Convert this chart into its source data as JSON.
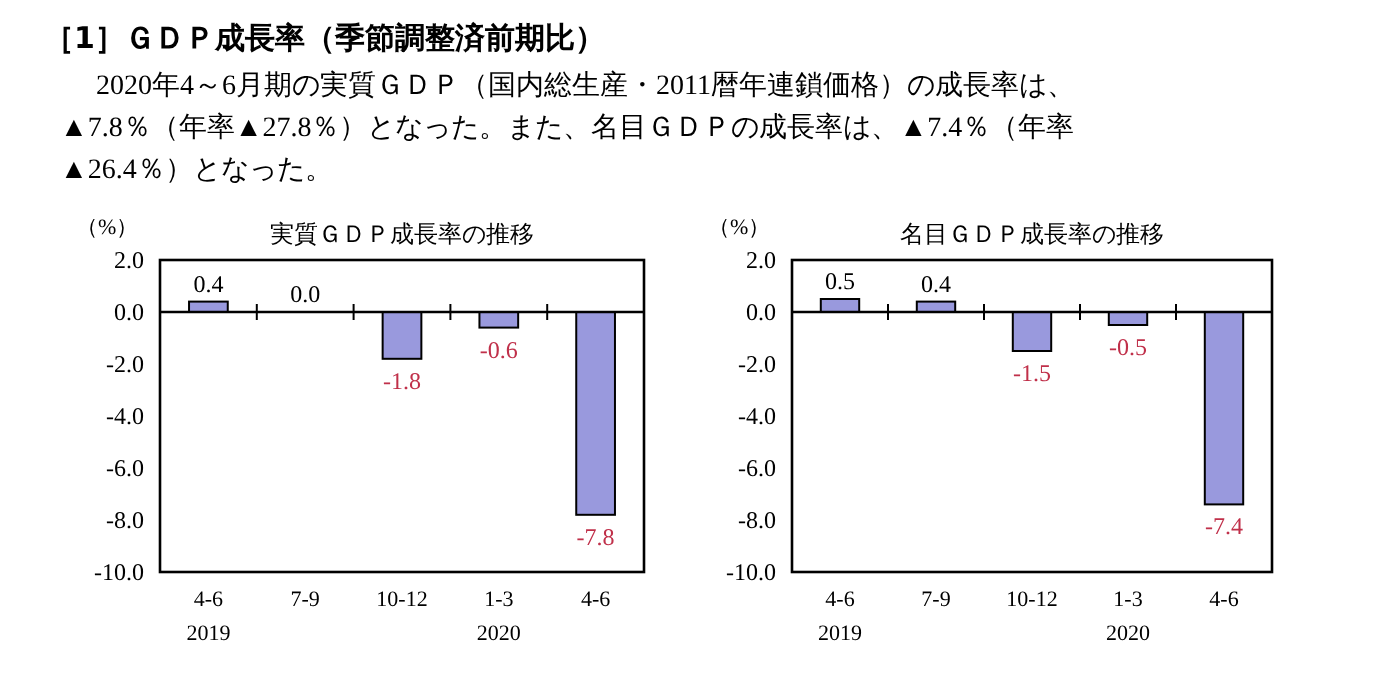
{
  "chart_data": [
    {
      "type": "other",
      "title": "［1］ＧＤＰ成長率（季節調整済前期比）",
      "annotations": [
        "2020年4～6月期の実質ＧＤＰ（国内総生産・2011暦年連鎖価格）の成長率は、",
        "▲7.8％（年率▲27.8％）となった。また、名目ＧＤＰの成長率は、▲7.4％（年率",
        "▲26.4％）となった。"
      ]
    },
    {
      "type": "bar",
      "title": "実質ＧＤＰ成長率の推移",
      "ylabel": "（%）",
      "categories": [
        "4-6\n2019",
        "7-9",
        "10-12",
        "1-3\n2020",
        "4-6"
      ],
      "values": [
        0.4,
        0.0,
        -1.8,
        -0.6,
        -7.8
      ],
      "color": "#9999dd",
      "value_labels": [
        "0.4",
        "0.0",
        "-1.8",
        "-0.6",
        "-7.8"
      ],
      "ylim": [
        -10,
        2
      ],
      "yticks": [
        {
          "value": 2,
          "label": "2.0"
        },
        {
          "value": 0,
          "label": "0.0"
        },
        {
          "value": -2,
          "label": "-2.0"
        },
        {
          "value": -4,
          "label": "-4.0"
        },
        {
          "value": -6,
          "label": "-6.0"
        },
        {
          "value": -8,
          "label": "-8.0"
        },
        {
          "value": -10,
          "label": "-10.0"
        }
      ]
    },
    {
      "type": "bar",
      "title": "名目ＧＤＰ成長率の推移",
      "ylabel": "（%）",
      "categories": [
        "4-6\n2019",
        "7-9",
        "10-12",
        "1-3\n2020",
        "4-6"
      ],
      "values": [
        0.5,
        0.4,
        -1.5,
        -0.5,
        -7.4
      ],
      "color": "#9999dd",
      "value_labels": [
        "0.5",
        "0.4",
        "-1.5",
        "-0.5",
        "-7.4"
      ],
      "ylim": [
        -10,
        2
      ],
      "yticks": [
        {
          "value": 2,
          "label": "2.0"
        },
        {
          "value": 0,
          "label": "0.0"
        },
        {
          "value": -2,
          "label": "-2.0"
        },
        {
          "value": -4,
          "label": "-4.0"
        },
        {
          "value": -6,
          "label": "-6.0"
        },
        {
          "value": -8,
          "label": "-8.0"
        },
        {
          "value": -10,
          "label": "-10.0"
        }
      ]
    }
  ]
}
